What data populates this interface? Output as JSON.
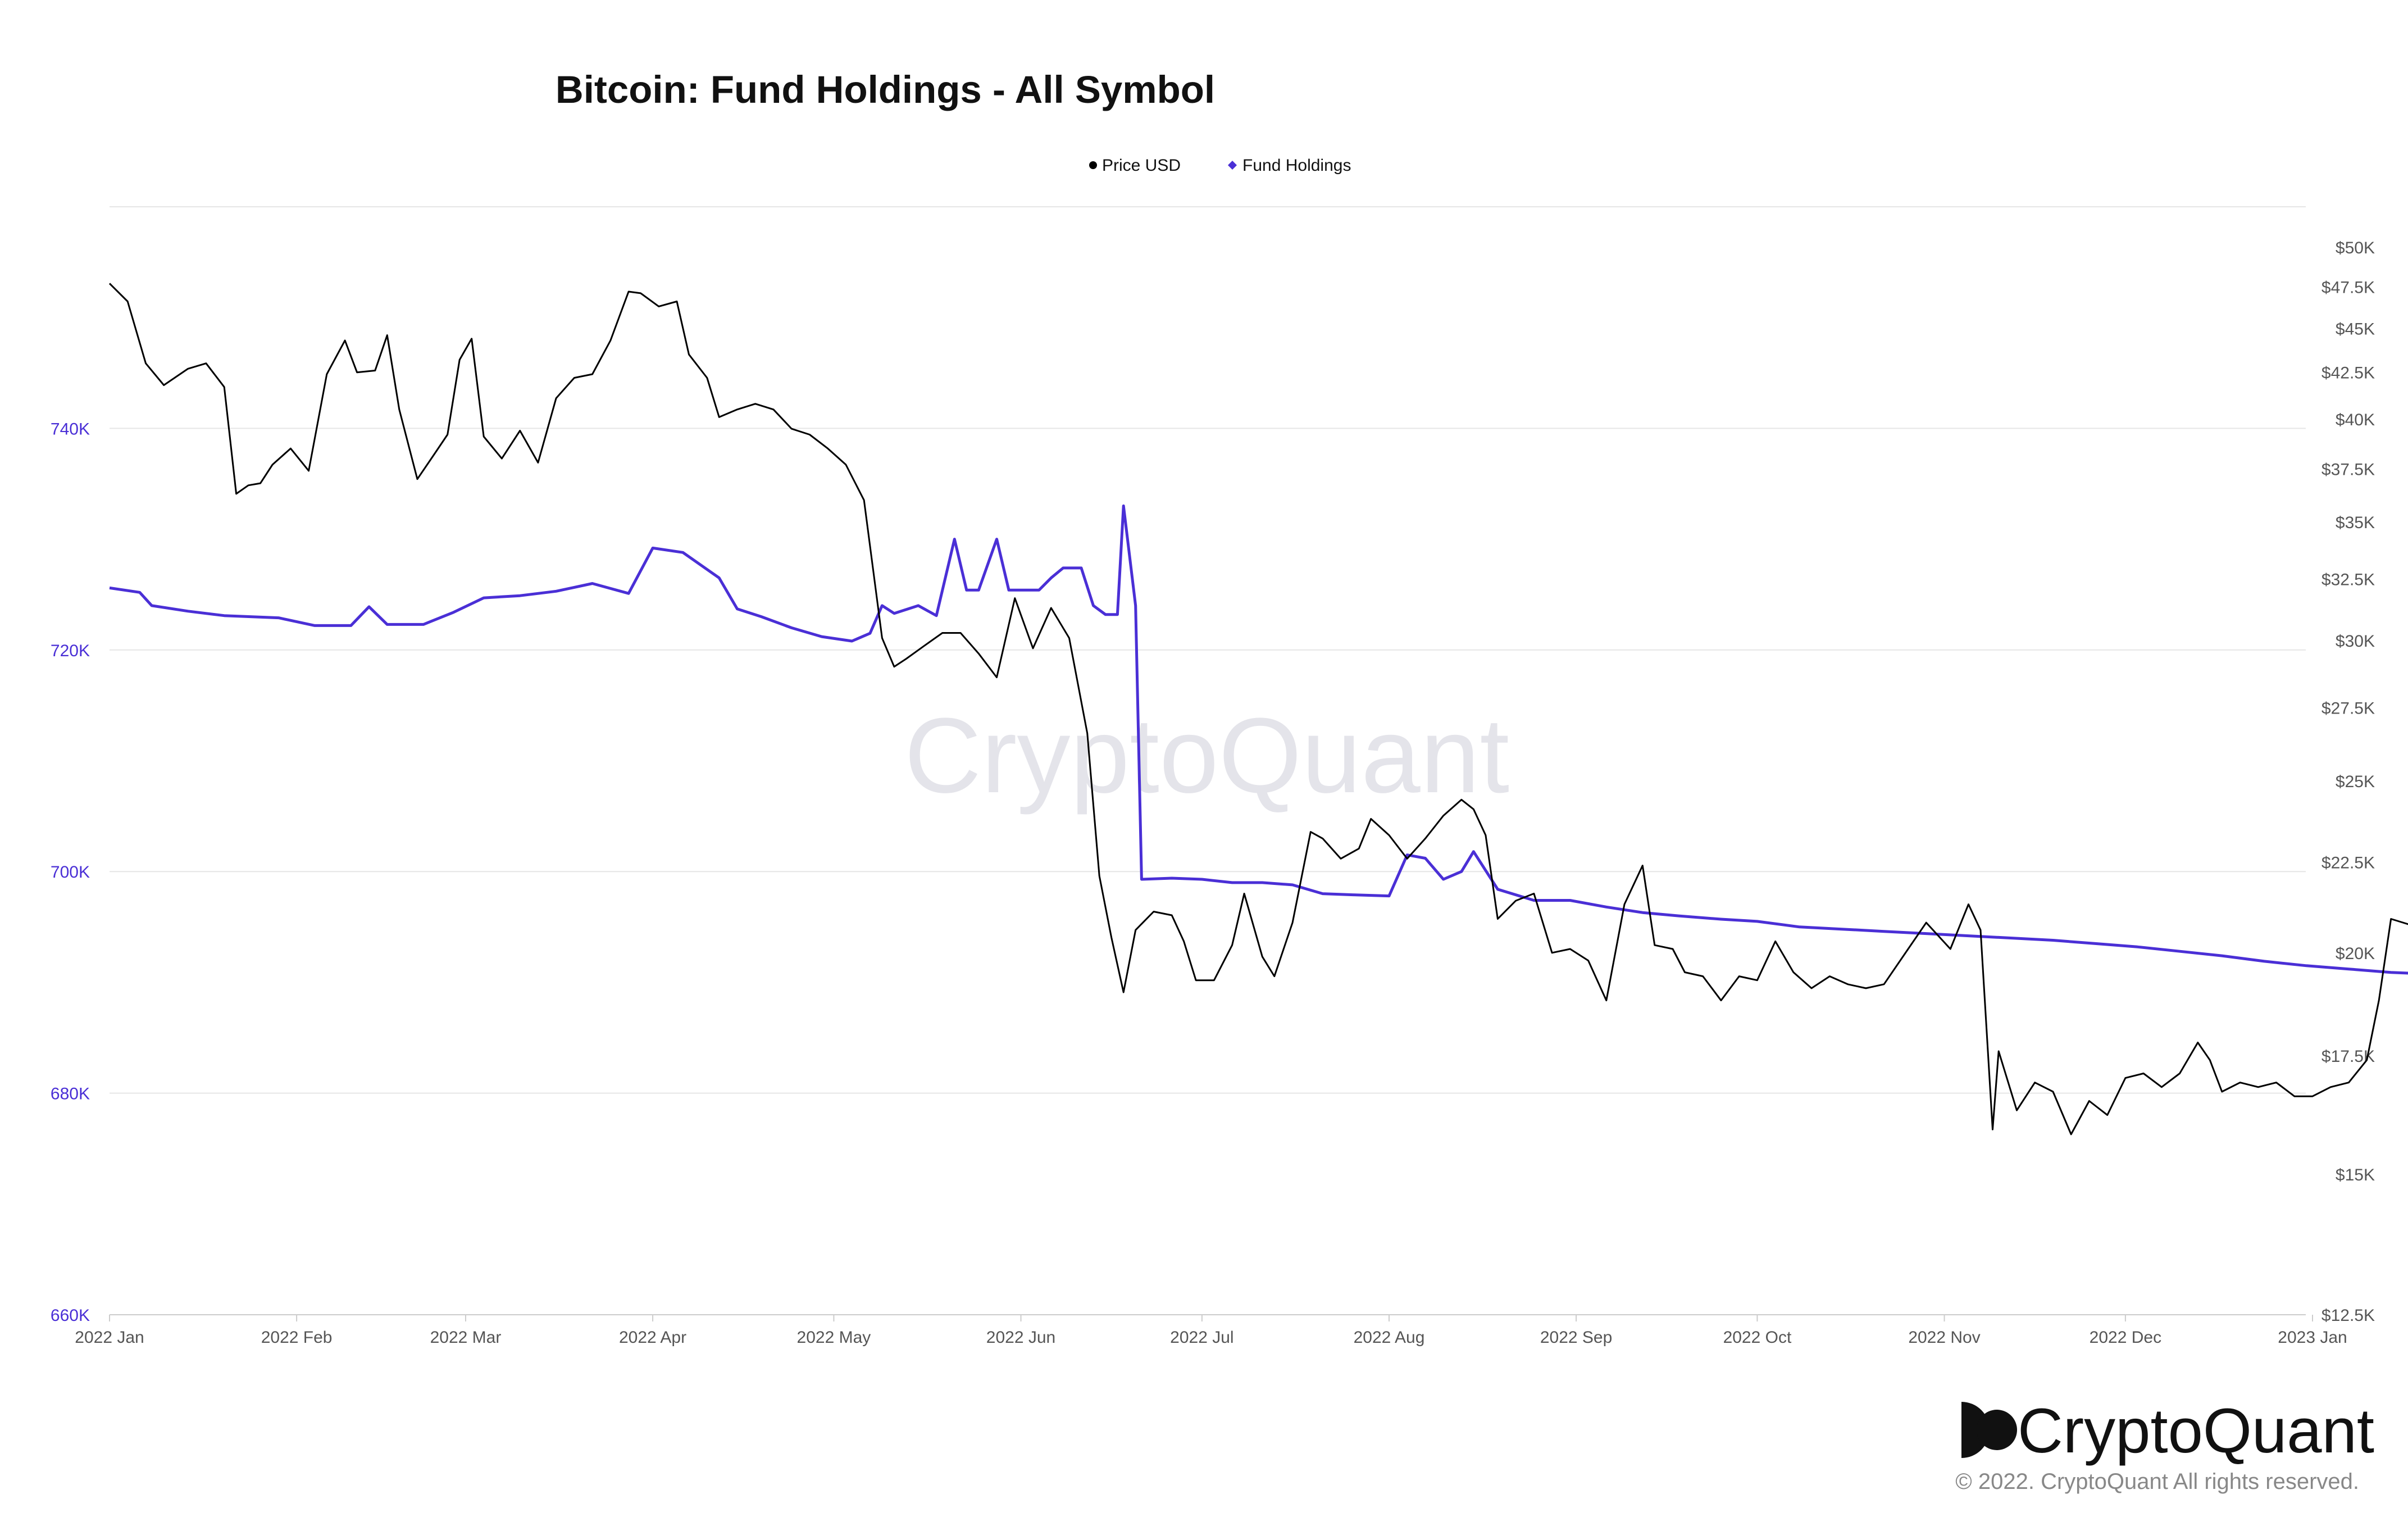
{
  "chart_data": {
    "type": "line",
    "title": "Bitcoin: Fund Holdings - All Symbol",
    "legend": {
      "placement": "top-center"
    },
    "grid": true,
    "x_axis": {
      "ticks": [
        "2022 Jan",
        "2022 Feb",
        "2022 Mar",
        "2022 Apr",
        "2022 May",
        "2022 Jun",
        "2022 Jul",
        "2022 Aug",
        "2022 Sep",
        "2022 Oct",
        "2022 Nov",
        "2022 Dec",
        "2023 Jan"
      ],
      "tick_dates": [
        "2022-01-01",
        "2022-02-01",
        "2022-03-01",
        "2022-04-01",
        "2022-05-01",
        "2022-06-01",
        "2022-07-01",
        "2022-08-01",
        "2022-09-01",
        "2022-10-01",
        "2022-11-01",
        "2022-12-01",
        "2023-01-01"
      ],
      "range": [
        "2022-01-01",
        "2023-01-20"
      ]
    },
    "y_left": {
      "ticks": [
        "740K",
        "720K",
        "700K",
        "680K",
        "660K"
      ],
      "tick_values": [
        740000,
        720000,
        700000,
        680000,
        660000
      ],
      "range": [
        660000,
        760000
      ],
      "color": "#4a2fd6"
    },
    "y_right": {
      "scale": "log",
      "ticks": [
        "$50K",
        "$47.5K",
        "$45K",
        "$42.5K",
        "$40K",
        "$37.5K",
        "$35K",
        "$32.5K",
        "$30K",
        "$27.5K",
        "$25K",
        "$22.5K",
        "$20K",
        "$17.5K",
        "$15K",
        "$12.5K"
      ],
      "tick_values": [
        50000,
        47500,
        45000,
        42500,
        40000,
        37500,
        35000,
        32500,
        30000,
        27500,
        25000,
        22500,
        20000,
        17500,
        15000,
        12500
      ],
      "range": [
        12500,
        50000
      ]
    },
    "series": [
      {
        "name": "Price USD",
        "axis": "right",
        "color": "#000000",
        "points": [
          [
            "2022-01-01",
            47700
          ],
          [
            "2022-01-04",
            46600
          ],
          [
            "2022-01-07",
            43000
          ],
          [
            "2022-01-10",
            41800
          ],
          [
            "2022-01-14",
            42700
          ],
          [
            "2022-01-17",
            43000
          ],
          [
            "2022-01-20",
            41700
          ],
          [
            "2022-01-22",
            36300
          ],
          [
            "2022-01-24",
            36700
          ],
          [
            "2022-01-26",
            36800
          ],
          [
            "2022-01-28",
            37700
          ],
          [
            "2022-01-31",
            38500
          ],
          [
            "2022-02-03",
            37400
          ],
          [
            "2022-02-06",
            42400
          ],
          [
            "2022-02-09",
            44300
          ],
          [
            "2022-02-11",
            42500
          ],
          [
            "2022-02-14",
            42600
          ],
          [
            "2022-02-16",
            44600
          ],
          [
            "2022-02-18",
            40500
          ],
          [
            "2022-02-21",
            37000
          ],
          [
            "2022-02-24",
            38300
          ],
          [
            "2022-02-26",
            39200
          ],
          [
            "2022-02-28",
            43200
          ],
          [
            "2022-03-02",
            44400
          ],
          [
            "2022-03-04",
            39100
          ],
          [
            "2022-03-07",
            38000
          ],
          [
            "2022-03-10",
            39400
          ],
          [
            "2022-03-13",
            37800
          ],
          [
            "2022-03-16",
            41100
          ],
          [
            "2022-03-19",
            42200
          ],
          [
            "2022-03-22",
            42400
          ],
          [
            "2022-03-25",
            44300
          ],
          [
            "2022-03-28",
            47200
          ],
          [
            "2022-03-30",
            47100
          ],
          [
            "2022-04-02",
            46300
          ],
          [
            "2022-04-05",
            46600
          ],
          [
            "2022-04-07",
            43500
          ],
          [
            "2022-04-10",
            42200
          ],
          [
            "2022-04-12",
            40100
          ],
          [
            "2022-04-15",
            40500
          ],
          [
            "2022-04-18",
            40800
          ],
          [
            "2022-04-21",
            40500
          ],
          [
            "2022-04-24",
            39500
          ],
          [
            "2022-04-27",
            39200
          ],
          [
            "2022-04-30",
            38500
          ],
          [
            "2022-05-03",
            37700
          ],
          [
            "2022-05-06",
            36000
          ],
          [
            "2022-05-09",
            30100
          ],
          [
            "2022-05-11",
            29000
          ],
          [
            "2022-05-13",
            29300
          ],
          [
            "2022-05-16",
            29800
          ],
          [
            "2022-05-19",
            30300
          ],
          [
            "2022-05-22",
            30300
          ],
          [
            "2022-05-25",
            29500
          ],
          [
            "2022-05-28",
            28600
          ],
          [
            "2022-05-31",
            31700
          ],
          [
            "2022-06-03",
            29700
          ],
          [
            "2022-06-06",
            31300
          ],
          [
            "2022-06-09",
            30100
          ],
          [
            "2022-06-12",
            26600
          ],
          [
            "2022-06-14",
            22100
          ],
          [
            "2022-06-16",
            20400
          ],
          [
            "2022-06-18",
            19000
          ],
          [
            "2022-06-20",
            20600
          ],
          [
            "2022-06-23",
            21100
          ],
          [
            "2022-06-26",
            21000
          ],
          [
            "2022-06-28",
            20300
          ],
          [
            "2022-06-30",
            19300
          ],
          [
            "2022-07-03",
            19300
          ],
          [
            "2022-07-06",
            20200
          ],
          [
            "2022-07-08",
            21600
          ],
          [
            "2022-07-11",
            19900
          ],
          [
            "2022-07-13",
            19400
          ],
          [
            "2022-07-16",
            20800
          ],
          [
            "2022-07-19",
            23400
          ],
          [
            "2022-07-21",
            23200
          ],
          [
            "2022-07-24",
            22600
          ],
          [
            "2022-07-27",
            22900
          ],
          [
            "2022-07-29",
            23800
          ],
          [
            "2022-08-01",
            23300
          ],
          [
            "2022-08-04",
            22600
          ],
          [
            "2022-08-07",
            23200
          ],
          [
            "2022-08-10",
            23900
          ],
          [
            "2022-08-13",
            24400
          ],
          [
            "2022-08-15",
            24100
          ],
          [
            "2022-08-17",
            23300
          ],
          [
            "2022-08-19",
            20900
          ],
          [
            "2022-08-22",
            21400
          ],
          [
            "2022-08-25",
            21600
          ],
          [
            "2022-08-28",
            20000
          ],
          [
            "2022-08-31",
            20100
          ],
          [
            "2022-09-03",
            19800
          ],
          [
            "2022-09-06",
            18800
          ],
          [
            "2022-09-09",
            21300
          ],
          [
            "2022-09-12",
            22400
          ],
          [
            "2022-09-14",
            20200
          ],
          [
            "2022-09-17",
            20100
          ],
          [
            "2022-09-19",
            19500
          ],
          [
            "2022-09-22",
            19400
          ],
          [
            "2022-09-25",
            18800
          ],
          [
            "2022-09-28",
            19400
          ],
          [
            "2022-10-01",
            19300
          ],
          [
            "2022-10-04",
            20300
          ],
          [
            "2022-10-07",
            19500
          ],
          [
            "2022-10-10",
            19100
          ],
          [
            "2022-10-13",
            19400
          ],
          [
            "2022-10-16",
            19200
          ],
          [
            "2022-10-19",
            19100
          ],
          [
            "2022-10-22",
            19200
          ],
          [
            "2022-10-26",
            20100
          ],
          [
            "2022-10-29",
            20800
          ],
          [
            "2022-11-02",
            20100
          ],
          [
            "2022-11-05",
            21300
          ],
          [
            "2022-11-07",
            20600
          ],
          [
            "2022-11-09",
            15900
          ],
          [
            "2022-11-10",
            17600
          ],
          [
            "2022-11-13",
            16300
          ],
          [
            "2022-11-16",
            16900
          ],
          [
            "2022-11-19",
            16700
          ],
          [
            "2022-11-22",
            15800
          ],
          [
            "2022-11-25",
            16500
          ],
          [
            "2022-11-28",
            16200
          ],
          [
            "2022-12-01",
            17000
          ],
          [
            "2022-12-04",
            17100
          ],
          [
            "2022-12-07",
            16800
          ],
          [
            "2022-12-10",
            17100
          ],
          [
            "2022-12-13",
            17800
          ],
          [
            "2022-12-15",
            17400
          ],
          [
            "2022-12-17",
            16700
          ],
          [
            "2022-12-20",
            16900
          ],
          [
            "2022-12-23",
            16800
          ],
          [
            "2022-12-26",
            16900
          ],
          [
            "2022-12-29",
            16600
          ],
          [
            "2023-01-01",
            16600
          ],
          [
            "2023-01-04",
            16800
          ],
          [
            "2023-01-07",
            16900
          ],
          [
            "2023-01-10",
            17400
          ],
          [
            "2023-01-12",
            18800
          ],
          [
            "2023-01-14",
            20900
          ],
          [
            "2023-01-18",
            20700
          ]
        ]
      },
      {
        "name": "Fund Holdings",
        "axis": "left",
        "color": "#4a2fd6",
        "points": [
          [
            "2022-01-01",
            725600
          ],
          [
            "2022-01-06",
            725200
          ],
          [
            "2022-01-08",
            724000
          ],
          [
            "2022-01-14",
            723500
          ],
          [
            "2022-01-20",
            723100
          ],
          [
            "2022-01-29",
            722900
          ],
          [
            "2022-02-04",
            722200
          ],
          [
            "2022-02-10",
            722200
          ],
          [
            "2022-02-13",
            723900
          ],
          [
            "2022-02-16",
            722300
          ],
          [
            "2022-02-22",
            722300
          ],
          [
            "2022-02-27",
            723400
          ],
          [
            "2022-03-04",
            724700
          ],
          [
            "2022-03-10",
            724900
          ],
          [
            "2022-03-16",
            725300
          ],
          [
            "2022-03-22",
            726000
          ],
          [
            "2022-03-28",
            725100
          ],
          [
            "2022-04-01",
            729200
          ],
          [
            "2022-04-06",
            728800
          ],
          [
            "2022-04-12",
            726500
          ],
          [
            "2022-04-15",
            723700
          ],
          [
            "2022-04-19",
            723000
          ],
          [
            "2022-04-24",
            722000
          ],
          [
            "2022-04-29",
            721200
          ],
          [
            "2022-05-04",
            720800
          ],
          [
            "2022-05-07",
            721500
          ],
          [
            "2022-05-09",
            724000
          ],
          [
            "2022-05-11",
            723300
          ],
          [
            "2022-05-15",
            724000
          ],
          [
            "2022-05-18",
            723100
          ],
          [
            "2022-05-21",
            730000
          ],
          [
            "2022-05-23",
            725400
          ],
          [
            "2022-05-25",
            725400
          ],
          [
            "2022-05-28",
            730000
          ],
          [
            "2022-05-30",
            725400
          ],
          [
            "2022-06-04",
            725400
          ],
          [
            "2022-06-06",
            726500
          ],
          [
            "2022-06-08",
            727400
          ],
          [
            "2022-06-11",
            727400
          ],
          [
            "2022-06-13",
            724000
          ],
          [
            "2022-06-15",
            723200
          ],
          [
            "2022-06-17",
            723200
          ],
          [
            "2022-06-18",
            733000
          ],
          [
            "2022-06-20",
            724000
          ],
          [
            "2022-06-21",
            699300
          ],
          [
            "2022-06-26",
            699400
          ],
          [
            "2022-07-01",
            699300
          ],
          [
            "2022-07-06",
            699000
          ],
          [
            "2022-07-11",
            699000
          ],
          [
            "2022-07-16",
            698800
          ],
          [
            "2022-07-21",
            698000
          ],
          [
            "2022-07-26",
            697900
          ],
          [
            "2022-08-01",
            697800
          ],
          [
            "2022-08-04",
            701500
          ],
          [
            "2022-08-07",
            701200
          ],
          [
            "2022-08-10",
            699300
          ],
          [
            "2022-08-13",
            700000
          ],
          [
            "2022-08-15",
            701800
          ],
          [
            "2022-08-19",
            698400
          ],
          [
            "2022-08-25",
            697400
          ],
          [
            "2022-08-31",
            697400
          ],
          [
            "2022-09-06",
            696800
          ],
          [
            "2022-09-12",
            696300
          ],
          [
            "2022-09-18",
            696000
          ],
          [
            "2022-09-25",
            695700
          ],
          [
            "2022-10-01",
            695500
          ],
          [
            "2022-10-08",
            695000
          ],
          [
            "2022-10-15",
            694800
          ],
          [
            "2022-10-22",
            694600
          ],
          [
            "2022-10-29",
            694400
          ],
          [
            "2022-11-05",
            694200
          ],
          [
            "2022-11-12",
            694000
          ],
          [
            "2022-11-19",
            693800
          ],
          [
            "2022-11-26",
            693500
          ],
          [
            "2022-12-03",
            693200
          ],
          [
            "2022-12-10",
            692800
          ],
          [
            "2022-12-17",
            692400
          ],
          [
            "2022-12-24",
            691900
          ],
          [
            "2022-12-31",
            691500
          ],
          [
            "2023-01-07",
            691200
          ],
          [
            "2023-01-14",
            690900
          ],
          [
            "2023-01-18",
            690800
          ]
        ]
      }
    ]
  },
  "watermark": "CryptoQuant",
  "brand": {
    "name": "CryptoQuant",
    "copyright": "© 2022. CryptoQuant All rights reserved."
  }
}
